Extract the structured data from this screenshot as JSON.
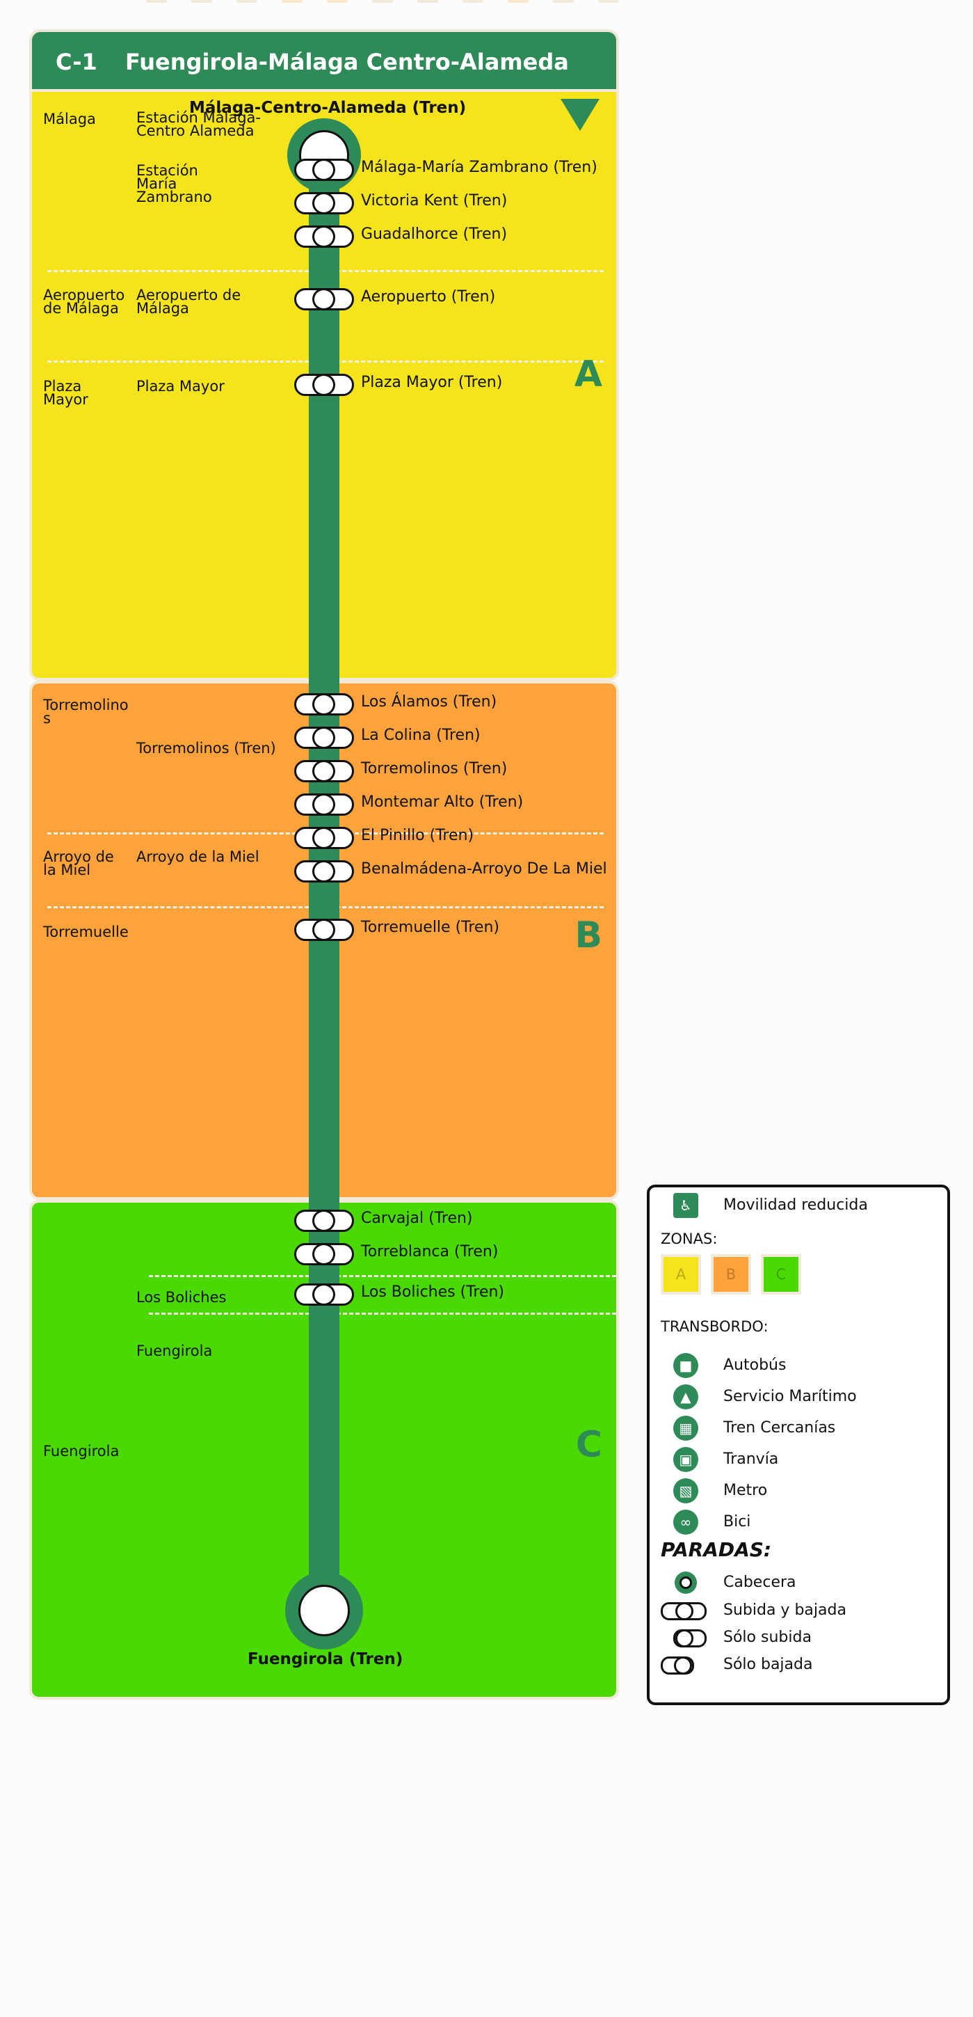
{
  "header": {
    "line_code": "C-1",
    "title": "Fuengirola-Málaga Centro-Alameda"
  },
  "colors": {
    "accent": "#2e8b57",
    "zone_a": "#f5e41b",
    "zone_b": "#fea33c",
    "zone_c": "#4ad900",
    "divider": "#f5f1e2"
  },
  "terminals": {
    "top": "Málaga-Centro-Alameda (Tren)",
    "bottom": "Fuengirola (Tren)"
  },
  "zones": {
    "a": {
      "letter": "A",
      "towns": [
        {
          "municipality": "Málaga",
          "locations": [
            "Estación Málaga-Centro Alameda",
            "Estación María Zambrano"
          ]
        },
        {
          "municipality": "Aeropuerto de Málaga",
          "locations": [
            "Aeropuerto de Málaga"
          ]
        },
        {
          "municipality": "Plaza Mayor",
          "locations": [
            "Plaza Mayor"
          ]
        }
      ]
    },
    "b": {
      "letter": "B",
      "towns": [
        {
          "municipality": "Torremolinos",
          "locations": [
            "Torremolinos (Tren)"
          ]
        },
        {
          "municipality": "Arroyo de la Miel",
          "locations": [
            "Arroyo de la Miel"
          ]
        },
        {
          "municipality": "Torremuelle",
          "locations": []
        }
      ]
    },
    "c": {
      "letter": "C",
      "towns": [
        {
          "municipality": "Fuengirola",
          "locations": [
            "Los Boliches",
            "Fuengirola"
          ]
        }
      ]
    }
  },
  "stops": [
    "Málaga-María Zambrano (Tren)",
    "Victoria Kent (Tren)",
    "Guadalhorce (Tren)",
    "Aeropuerto (Tren)",
    "Plaza Mayor (Tren)",
    "Los Álamos (Tren)",
    "La Colina (Tren)",
    "Torremolinos (Tren)",
    "Montemar Alto (Tren)",
    "El Pinillo (Tren)",
    "Benalmádena-Arroyo De La Miel",
    "Torremuelle (Tren)",
    "Carvajal (Tren)",
    "Torreblanca (Tren)",
    "Los Boliches (Tren)"
  ],
  "legend": {
    "accessibility": "Movilidad reducida",
    "zones_heading": "ZONAS:",
    "zones": [
      "A",
      "B",
      "C"
    ],
    "transfer_heading": "TRANSBORDO:",
    "transfers": [
      {
        "icon": "bus-icon",
        "label": "Autobús"
      },
      {
        "icon": "ferry-icon",
        "label": "Servicio Marítimo"
      },
      {
        "icon": "train-icon",
        "label": "Tren Cercanías"
      },
      {
        "icon": "tram-icon",
        "label": "Tranvía"
      },
      {
        "icon": "metro-icon",
        "label": "Metro"
      },
      {
        "icon": "bike-icon",
        "label": "Bici"
      }
    ],
    "stops_heading": "PARADAS:",
    "stop_types": [
      "Cabecera",
      "Subida y bajada",
      "Sólo subida",
      "Sólo bajada"
    ]
  }
}
